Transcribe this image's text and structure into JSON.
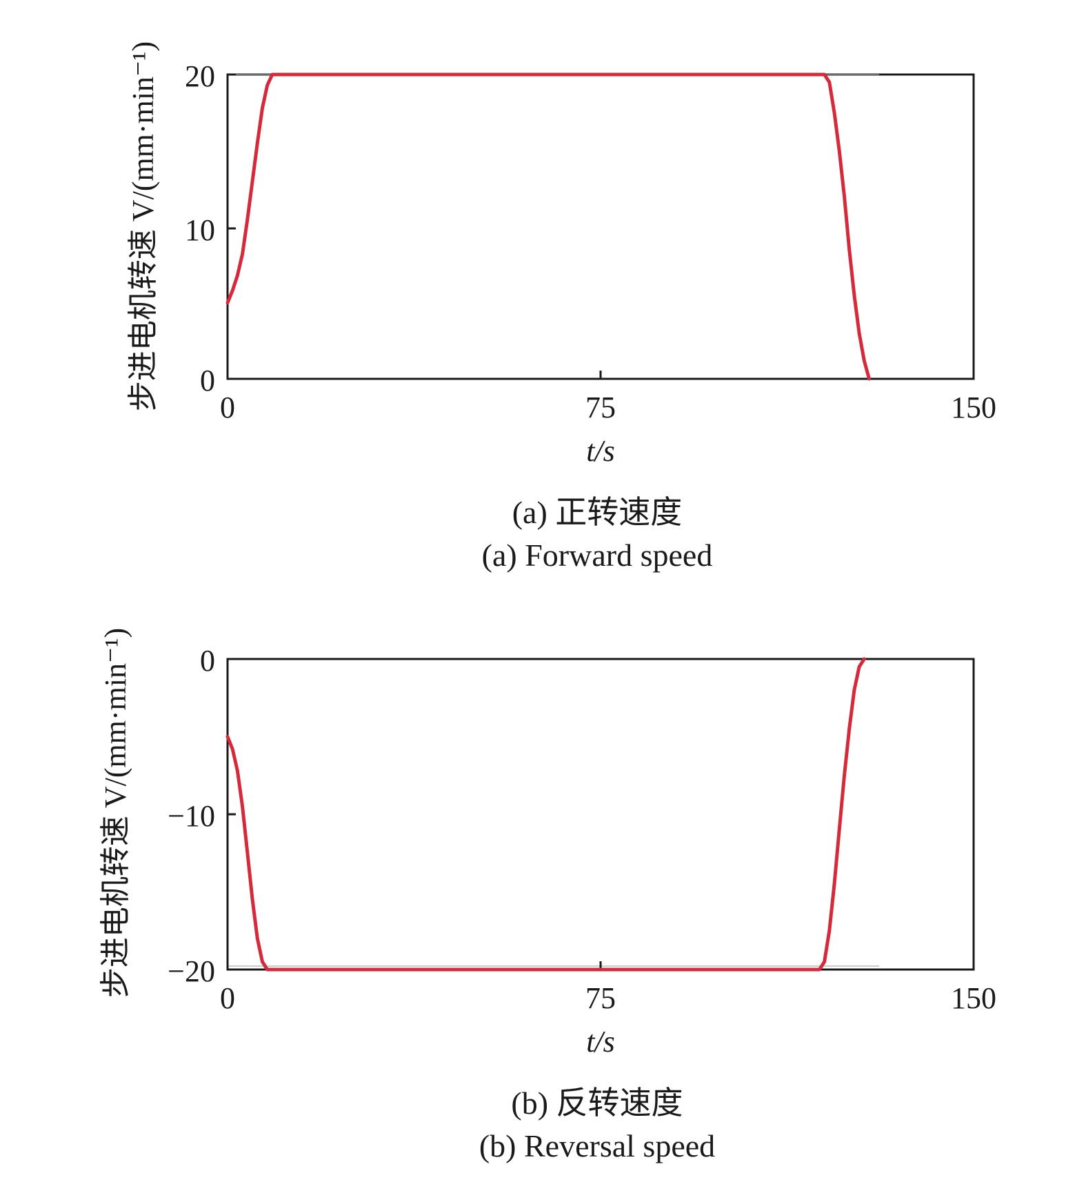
{
  "chart_data": [
    {
      "type": "line",
      "xlabel": "t/s",
      "ylabel": "步进电机转速 V/(mm·min⁻¹)",
      "xlim": [
        0,
        150
      ],
      "ylim": [
        0,
        20
      ],
      "xticks": [
        "0",
        "75",
        "150"
      ],
      "yticks": [
        "0",
        "10",
        "20"
      ],
      "caption_cn": "(a) 正转速度",
      "caption_en": "(a) Forward speed",
      "grid": false,
      "series": [
        {
          "color": "#d42a3c",
          "points": [
            [
              0,
              5
            ],
            [
              1,
              5.8
            ],
            [
              2,
              6.8
            ],
            [
              3,
              8.2
            ],
            [
              4,
              10.5
            ],
            [
              5,
              13
            ],
            [
              6,
              15.5
            ],
            [
              7,
              17.8
            ],
            [
              8,
              19.3
            ],
            [
              9,
              20
            ],
            [
              10,
              20
            ],
            [
              60,
              20
            ],
            [
              110,
              20
            ],
            [
              120,
              20
            ],
            [
              121,
              19.5
            ],
            [
              122,
              17.5
            ],
            [
              123,
              15
            ],
            [
              124,
              12
            ],
            [
              125,
              8.5
            ],
            [
              126,
              5.5
            ],
            [
              127,
              3
            ],
            [
              128,
              1.2
            ],
            [
              129,
              0
            ]
          ]
        }
      ]
    },
    {
      "type": "line",
      "xlabel": "t/s",
      "ylabel": "步进电机转速 V/(mm·min⁻¹)",
      "xlim": [
        0,
        150
      ],
      "ylim": [
        -20,
        0
      ],
      "xticks": [
        "0",
        "75",
        "150"
      ],
      "yticks": [
        "0",
        "−10",
        "−20"
      ],
      "caption_cn": "(b) 反转速度",
      "caption_en": "(b) Reversal speed",
      "grid": false,
      "series": [
        {
          "color": "#d42a3c",
          "points": [
            [
              0,
              -5
            ],
            [
              1,
              -5.8
            ],
            [
              2,
              -7.2
            ],
            [
              3,
              -9.5
            ],
            [
              4,
              -12.5
            ],
            [
              5,
              -15.5
            ],
            [
              6,
              -18
            ],
            [
              7,
              -19.5
            ],
            [
              8,
              -20
            ],
            [
              60,
              -20
            ],
            [
              119,
              -20
            ],
            [
              120,
              -19.5
            ],
            [
              121,
              -17.5
            ],
            [
              122,
              -14.5
            ],
            [
              123,
              -11
            ],
            [
              124,
              -7.5
            ],
            [
              125,
              -4.5
            ],
            [
              126,
              -2
            ],
            [
              127,
              -0.5
            ],
            [
              128,
              0
            ]
          ]
        }
      ]
    }
  ]
}
